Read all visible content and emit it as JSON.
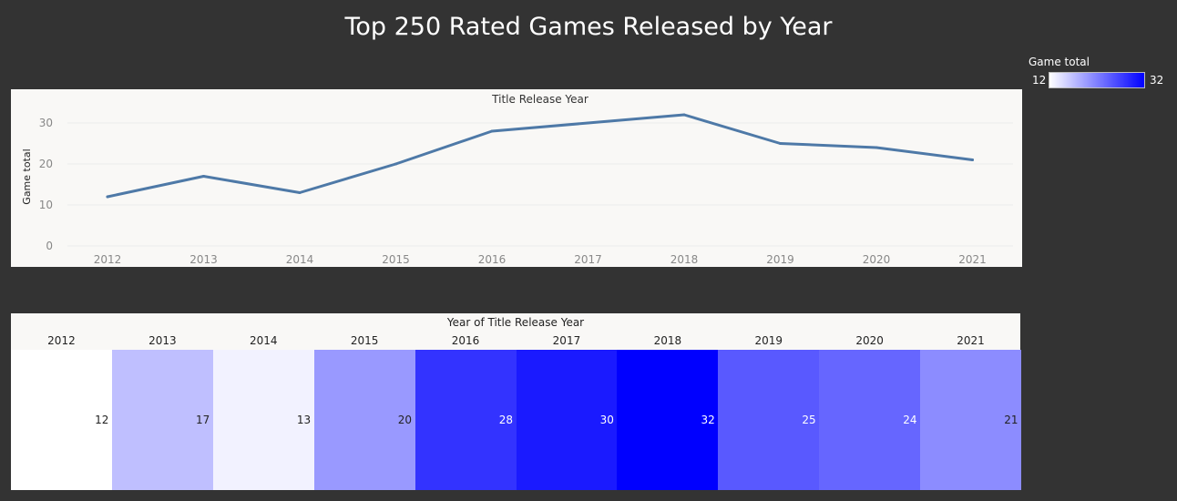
{
  "title": "Top 250 Rated Games Released by Year",
  "legend": {
    "title": "Game total",
    "min_label": "12",
    "max_label": "32",
    "min_value": 12,
    "max_value": 32,
    "min_color": "#ffffff",
    "max_color": "#0000ff"
  },
  "colors": {
    "line": "#4e79a7",
    "grid": "#ececec",
    "panel_bg": "#f9f8f6",
    "page_bg": "#333333"
  },
  "chart_data": [
    {
      "type": "line",
      "title": "Title Release Year",
      "ylabel": "Game total",
      "xlabel": "",
      "x": [
        "2012",
        "2013",
        "2014",
        "2015",
        "2016",
        "2017",
        "2018",
        "2019",
        "2020",
        "2021"
      ],
      "values": [
        12,
        17,
        13,
        20,
        28,
        30,
        32,
        25,
        24,
        21
      ],
      "ylim": [
        0,
        33
      ],
      "yticks": [
        0,
        10,
        20,
        30
      ],
      "grid": "horizontal"
    },
    {
      "type": "heatmap",
      "title": "Year of Title Release Year",
      "categories": [
        "2012",
        "2013",
        "2014",
        "2015",
        "2016",
        "2017",
        "2018",
        "2019",
        "2020",
        "2021"
      ],
      "values": [
        12,
        17,
        13,
        20,
        28,
        30,
        32,
        25,
        24,
        21
      ]
    }
  ]
}
